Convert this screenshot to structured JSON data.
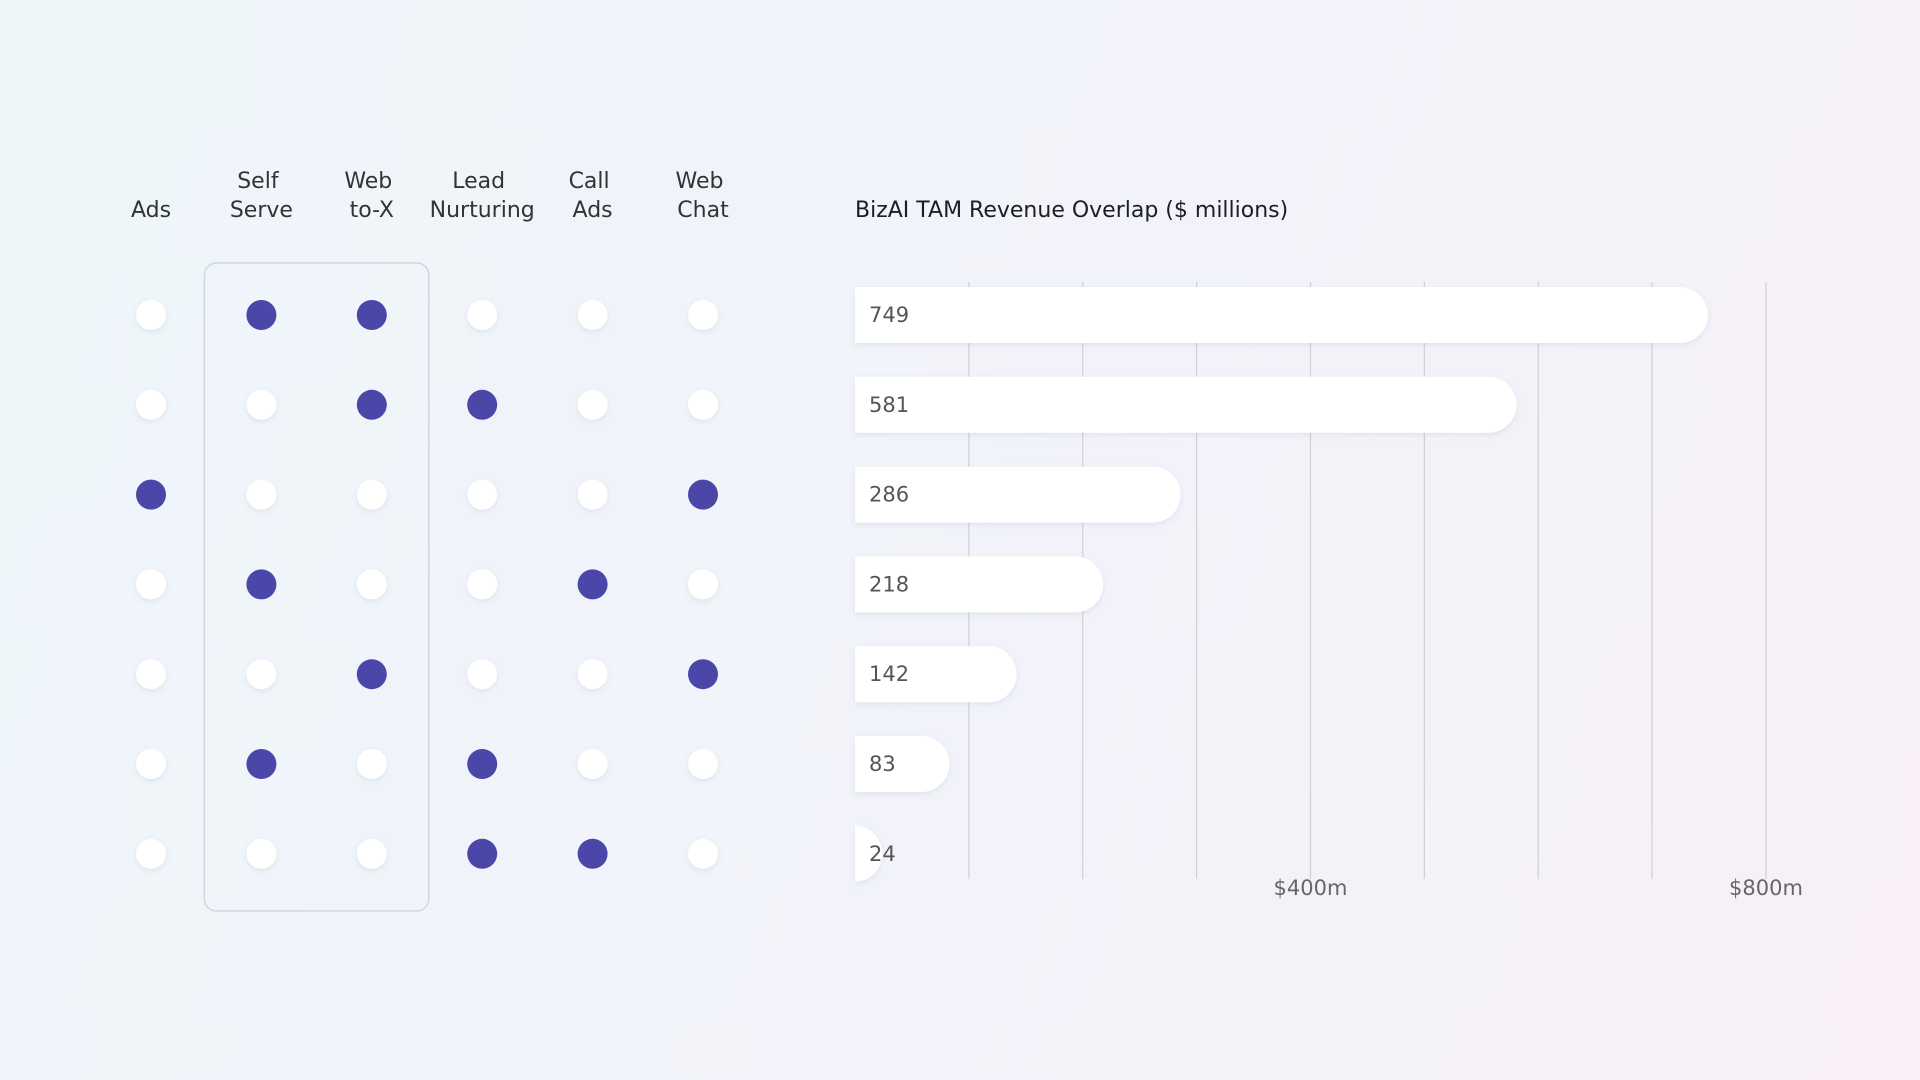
{
  "chart_data": {
    "type": "bar",
    "title": "BizAI TAM Revenue Overlap ($ millions)",
    "sets": [
      "Ads",
      "Self Serve",
      "Web to-X",
      "Lead Nurturing",
      "Call Ads",
      "Web Chat"
    ],
    "membership": [
      [
        0,
        1,
        1,
        0,
        0,
        0
      ],
      [
        0,
        0,
        1,
        1,
        0,
        0
      ],
      [
        1,
        0,
        0,
        0,
        0,
        1
      ],
      [
        0,
        1,
        0,
        0,
        1,
        0
      ],
      [
        0,
        0,
        1,
        0,
        0,
        1
      ],
      [
        0,
        1,
        0,
        1,
        0,
        0
      ],
      [
        0,
        0,
        0,
        1,
        1,
        0
      ]
    ],
    "highlight_columns": [
      1,
      2
    ],
    "dot_color": "#4a47a8",
    "values": [
      749,
      581,
      286,
      218,
      142,
      83,
      24
    ],
    "color": "#ffffff",
    "xlim": [
      0,
      800
    ],
    "xticks": [
      {
        "value": 400,
        "label": "$400m"
      },
      {
        "value": 800,
        "label": "$800m"
      }
    ],
    "xgrid": [
      100,
      200,
      300,
      400,
      500,
      600,
      700,
      800
    ]
  }
}
